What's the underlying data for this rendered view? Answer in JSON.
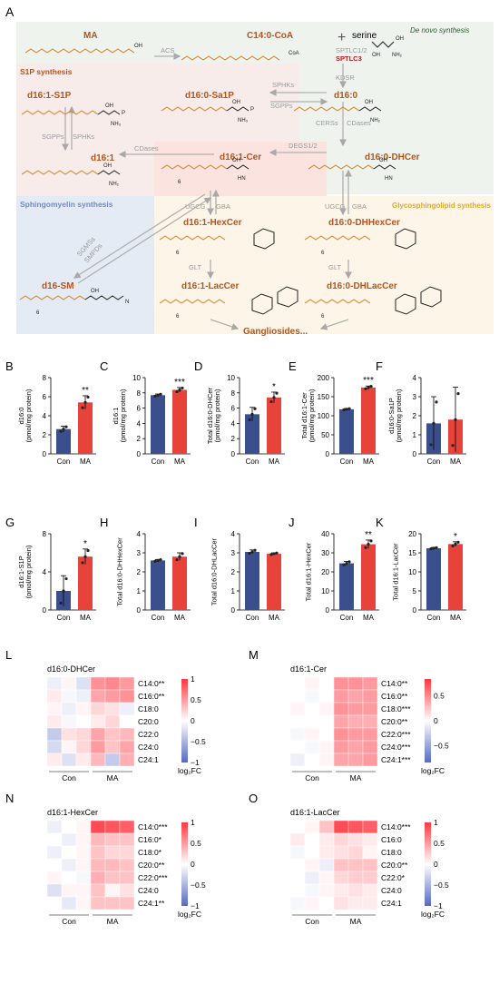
{
  "panel_labels": {
    "A": "A",
    "B": "B",
    "C": "C",
    "D": "D",
    "E": "E",
    "F": "F",
    "G": "G",
    "H": "H",
    "I": "I",
    "J": "J",
    "K": "K",
    "L": "L",
    "M": "M",
    "N": "N",
    "O": "O"
  },
  "pathway": {
    "regions": {
      "de_novo": "De novo synthesis",
      "s1p": "S1P synthesis",
      "sphingomyelin": "Sphingomyelin synthesis",
      "glyco": "Glycosphingolipid synthesis"
    },
    "metabolites": {
      "ma": "MA",
      "c14coa": "C14:0-CoA",
      "serine": "serine",
      "d16_1_s1p": "d16:1-S1P",
      "d16_0_sa1p": "d16:0-Sa1P",
      "d16_0": "d16:0",
      "d16_1": "d16:1",
      "d16_1_cer": "d16:1-Cer",
      "d16_0_dhcer": "d16:0-DHCer",
      "d16_1_hexcer": "d16:1-HexCer",
      "d16_0_dhhexcer": "d16:0-DHHexCer",
      "d16_sm": "d16-SM",
      "d16_1_laccer": "d16:1-LacCer",
      "d16_0_dhlaccer": "d16:0-DHLacCer",
      "gangliosides": "Gangliosides..."
    },
    "enzymes": {
      "acs": "ACS",
      "sptlc12": "SPTLC1/2",
      "sptlc3": "SPTLC3",
      "kdsr": "KDSR",
      "sphks": "SPHKs",
      "sgpps": "SGPPs",
      "cers": "CERSs",
      "cdases": "CDases",
      "degs": "DEGS1/2",
      "ugcg": "UGCG",
      "gba": "GBA",
      "glt": "GLT",
      "sgms": "SGMSs",
      "smpds": "SMPDs"
    },
    "chem": {
      "coa": "CoA",
      "oh": "OH",
      "nh2": "NH₂",
      "nh3": "NH₃",
      "o": "O",
      "hn": "HN",
      "nplus": "N",
      "sub6": "6",
      "p": "P"
    }
  },
  "bar_panels": [
    {
      "id": "B",
      "ylabel": [
        "d16:0",
        "(pmol/mg protein)"
      ],
      "ylim": [
        0,
        8
      ],
      "ticks": [
        "0",
        "2",
        "4",
        "6",
        "8"
      ],
      "categories": [
        "Con",
        "MA"
      ],
      "values": [
        2.6,
        5.4
      ],
      "errors": [
        0.3,
        0.7
      ],
      "sig": "**"
    },
    {
      "id": "C",
      "ylabel": [
        "d16:1",
        "(pmol/mg protein)"
      ],
      "ylim": [
        0,
        10
      ],
      "ticks": [
        "0",
        "2",
        "4",
        "6",
        "8",
        "10"
      ],
      "categories": [
        "Con",
        "MA"
      ],
      "values": [
        7.7,
        8.4
      ],
      "errors": [
        0.15,
        0.3
      ],
      "sig": "***"
    },
    {
      "id": "D",
      "ylabel": [
        "Total d16:0-DHCer",
        "(pmol/mg protein)"
      ],
      "ylim": [
        0,
        10
      ],
      "ticks": [
        "0",
        "2",
        "4",
        "6",
        "8",
        "10"
      ],
      "categories": [
        "Con",
        "MA"
      ],
      "values": [
        5.2,
        7.4
      ],
      "errors": [
        0.9,
        0.7
      ],
      "sig": "*"
    },
    {
      "id": "E",
      "ylabel": [
        "Total d16:1-Cer",
        "(pmol/mg protein)"
      ],
      "ylim": [
        0,
        200
      ],
      "ticks": [
        "0",
        "50",
        "100",
        "150",
        "200"
      ],
      "categories": [
        "Con",
        "MA"
      ],
      "values": [
        117,
        174
      ],
      "errors": [
        2,
        4
      ],
      "sig": "***"
    },
    {
      "id": "F",
      "ylabel": [
        "d16:0-Sa1P",
        "(pmol/mg protein)"
      ],
      "ylim": [
        0,
        4
      ],
      "ticks": [
        "0",
        "1",
        "2",
        "3",
        "4"
      ],
      "categories": [
        "Con",
        "MA"
      ],
      "values": [
        1.6,
        1.8
      ],
      "errors": [
        1.4,
        1.7
      ],
      "sig": ""
    },
    {
      "id": "G",
      "ylabel": [
        "d16:1-S1P",
        "(pmol/mg protein)"
      ],
      "ylim": [
        0,
        8
      ],
      "ticks": [
        "0",
        "4",
        "8"
      ],
      "categories": [
        "Con",
        "MA"
      ],
      "values": [
        2.0,
        5.6
      ],
      "errors": [
        1.6,
        0.8
      ],
      "sig": "*"
    },
    {
      "id": "H",
      "ylabel": [
        "Total d16:0-DHHexCer",
        ""
      ],
      "ylim": [
        0,
        4
      ],
      "ticks": [
        "0",
        "1",
        "2",
        "3",
        "4"
      ],
      "categories": [
        "Con",
        "MA"
      ],
      "values": [
        2.6,
        2.8
      ],
      "errors": [
        0.05,
        0.2
      ],
      "sig": ""
    },
    {
      "id": "I",
      "ylabel": [
        "Total d16:0-DHLacCer",
        ""
      ],
      "ylim": [
        0,
        4
      ],
      "ticks": [
        "0",
        "1",
        "2",
        "3",
        "4"
      ],
      "categories": [
        "Con",
        "MA"
      ],
      "values": [
        3.05,
        2.95
      ],
      "errors": [
        0.1,
        0.05
      ],
      "sig": ""
    },
    {
      "id": "J",
      "ylabel": [
        "Total d16:1-HexCer",
        ""
      ],
      "ylim": [
        0,
        40
      ],
      "ticks": [
        "0",
        "10",
        "20",
        "30",
        "40"
      ],
      "categories": [
        "Con",
        "MA"
      ],
      "values": [
        24.5,
        34.5
      ],
      "errors": [
        1.0,
        2.2
      ],
      "sig": "**"
    },
    {
      "id": "K",
      "ylabel": [
        "Total d16:1-LacCer",
        ""
      ],
      "ylim": [
        0,
        20
      ],
      "ticks": [
        "0",
        "5",
        "10",
        "15",
        "20"
      ],
      "categories": [
        "Con",
        "MA"
      ],
      "values": [
        16.2,
        17.3
      ],
      "errors": [
        0.2,
        0.6
      ],
      "sig": "*"
    }
  ],
  "heatmaps": [
    {
      "id": "L",
      "title": "d16:0-DHCer",
      "rows": [
        "C14:0**",
        "C16:0**",
        "C18:0",
        "C20:0",
        "C22:0",
        "C24:0",
        "C24:1"
      ],
      "cols": [
        "Con",
        "MA"
      ],
      "legend_ticks": [
        "1",
        "0.5",
        "0",
        "−0.5",
        "−1"
      ],
      "legend_title": "log₂FC",
      "values": [
        [
          -0.1,
          0.05,
          -0.2,
          0.55,
          0.6,
          0.5
        ],
        [
          0.1,
          -0.05,
          -0.1,
          0.45,
          0.5,
          0.55
        ],
        [
          0.05,
          -0.1,
          0.05,
          0.2,
          0.15,
          -0.1
        ],
        [
          0.1,
          -0.05,
          0,
          0.1,
          0.2,
          0.0
        ],
        [
          -0.35,
          0.15,
          0.2,
          0.45,
          0.3,
          0.35
        ],
        [
          -0.25,
          0.05,
          0.2,
          0.5,
          0.3,
          0.45
        ],
        [
          0.1,
          -0.2,
          0.1,
          0.35,
          -0.35,
          0.4
        ]
      ]
    },
    {
      "id": "M",
      "title": "d16:1-Cer",
      "rows": [
        "C14:0**",
        "C16:0**",
        "C18:0***",
        "C20:0**",
        "C22:0***",
        "C24:0***",
        "C24:1***"
      ],
      "cols": [
        "Con",
        "MA"
      ],
      "legend_ticks": [
        "0.5",
        "0",
        "−0.5"
      ],
      "legend_title": "log₂FC",
      "values": [
        [
          0.0,
          0.05,
          0.0,
          0.55,
          0.55,
          0.5
        ],
        [
          0.0,
          -0.05,
          0.0,
          0.5,
          0.45,
          0.5
        ],
        [
          0.05,
          0.0,
          0.05,
          0.55,
          0.5,
          0.5
        ],
        [
          0.0,
          0.0,
          0.0,
          0.45,
          0.4,
          0.4
        ],
        [
          -0.05,
          0.05,
          0.0,
          0.55,
          0.5,
          0.5
        ],
        [
          0.0,
          -0.05,
          0.05,
          0.5,
          0.45,
          0.5
        ],
        [
          -0.1,
          0.0,
          0.05,
          0.45,
          0.45,
          0.5
        ]
      ]
    },
    {
      "id": "N",
      "title": "d16:1-HexCer",
      "rows": [
        "C14:0***",
        "C16:0*",
        "C18:0*",
        "C20:0**",
        "C22:0***",
        "C24:0",
        "C24:1**"
      ],
      "cols": [
        "Con",
        "MA"
      ],
      "legend_ticks": [
        "1",
        "0.5",
        "0",
        "−0.5",
        "−1"
      ],
      "legend_title": "log₂FC",
      "values": [
        [
          -0.1,
          0.0,
          0.05,
          0.9,
          0.85,
          0.8
        ],
        [
          0.0,
          -0.1,
          0.05,
          0.35,
          0.3,
          0.3
        ],
        [
          -0.1,
          0.0,
          0.05,
          0.3,
          0.2,
          0.2
        ],
        [
          0.0,
          -0.1,
          0.05,
          0.35,
          0.35,
          0.3
        ],
        [
          0.05,
          0.0,
          -0.05,
          0.4,
          0.3,
          0.3
        ],
        [
          -0.2,
          0.05,
          0.05,
          0.3,
          0.05,
          0.15
        ],
        [
          0.0,
          -0.15,
          0.05,
          0.3,
          0.3,
          0.3
        ]
      ]
    },
    {
      "id": "O",
      "title": "d16:1-LacCer",
      "rows": [
        "C14:0***",
        "C16:0",
        "C18:0",
        "C20:0**",
        "C22:0*",
        "C24:0",
        "C24:1"
      ],
      "cols": [
        "Con",
        "MA"
      ],
      "legend_ticks": [
        "1",
        "0.5",
        "0",
        "−0.5",
        "−1"
      ],
      "legend_title": "log₂FC",
      "values": [
        [
          0.0,
          0.05,
          0.3,
          0.9,
          0.85,
          0.8
        ],
        [
          0.1,
          0.0,
          0.1,
          0.2,
          0.15,
          0.1
        ],
        [
          -0.05,
          0.0,
          0.1,
          0.15,
          0.2,
          0.05
        ],
        [
          0.0,
          0.05,
          -0.1,
          0.3,
          0.3,
          0.3
        ],
        [
          0.0,
          -0.1,
          0.05,
          0.2,
          0.25,
          0.25
        ],
        [
          0.0,
          -0.05,
          0.05,
          0.1,
          0.15,
          0.1
        ],
        [
          -0.05,
          0.05,
          0.0,
          0.15,
          0.1,
          0.1
        ]
      ]
    }
  ],
  "colors": {
    "con_bar": "#3b4f8c",
    "ma_bar": "#e8433a",
    "sig_red": "#c0392b",
    "region_orange": "#b5541b",
    "region_yellow": "#e0a92b",
    "region_blue": "#6f8cc4",
    "region_green": "#2e5b2e",
    "heat_pos": "#d7263d",
    "heat_neg": "#5c6bc0"
  }
}
